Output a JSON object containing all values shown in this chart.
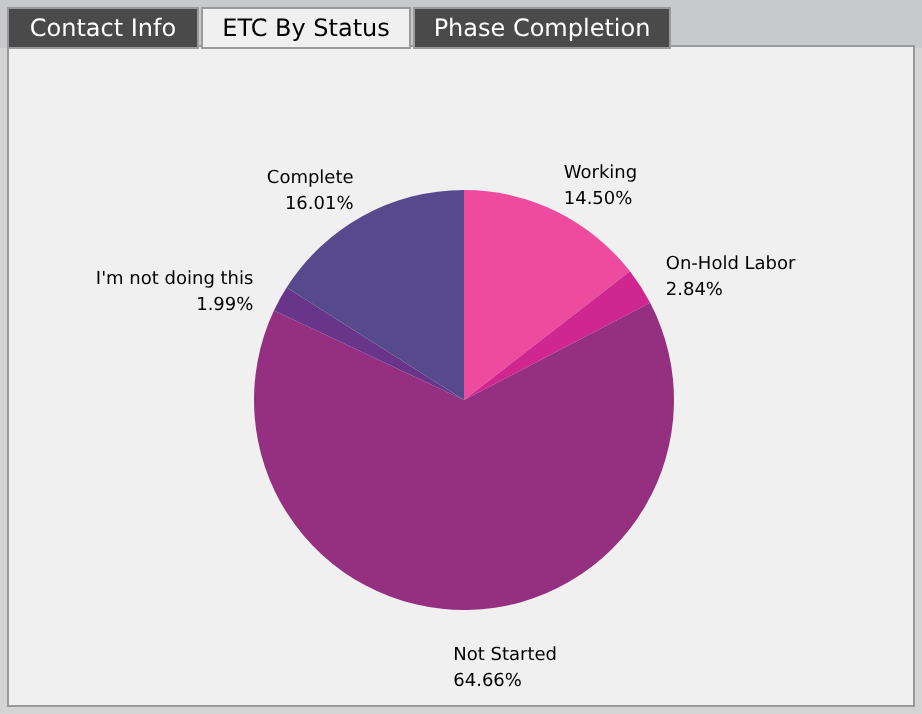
{
  "chart_data": {
    "type": "pie",
    "categories": [
      "Working",
      "On-Hold Labor",
      "Not Started",
      "I'm not doing this",
      "Complete"
    ],
    "values": [
      14.5,
      2.84,
      64.66,
      1.99,
      16.01
    ],
    "colors": [
      "#ee4b9f",
      "#d0268f",
      "#952f80",
      "#68358a",
      "#574a8c"
    ],
    "value_labels": [
      "14.50%",
      "2.84%",
      "64.66%",
      "1.99%",
      "16.01%"
    ],
    "annotations": [
      "Contact Info",
      "ETC By Status",
      "Phase Completion"
    ]
  }
}
